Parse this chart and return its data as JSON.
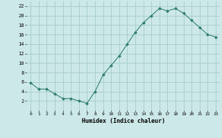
{
  "x": [
    0,
    1,
    2,
    3,
    4,
    5,
    6,
    7,
    8,
    9,
    10,
    11,
    12,
    13,
    14,
    15,
    16,
    17,
    18,
    19,
    20,
    21,
    22,
    23
  ],
  "y": [
    5.8,
    4.5,
    4.5,
    3.5,
    2.5,
    2.5,
    2.0,
    1.5,
    4.0,
    7.5,
    9.5,
    11.5,
    14.0,
    16.5,
    18.5,
    20.0,
    21.5,
    21.0,
    21.5,
    20.5,
    19.0,
    17.5,
    16.0,
    15.5
  ],
  "line_color": "#2e7d6e",
  "marker": "D",
  "marker_size": 2,
  "bg_color": "#cce8e8",
  "grid_color": "#aacece",
  "xlabel": "Humidex (Indice chaleur)",
  "xlim": [
    -0.5,
    23.5
  ],
  "ylim": [
    0,
    23
  ],
  "yticks": [
    2,
    4,
    6,
    8,
    10,
    12,
    14,
    16,
    18,
    20,
    22
  ],
  "xticks": [
    0,
    1,
    2,
    3,
    4,
    5,
    6,
    7,
    8,
    9,
    10,
    11,
    12,
    13,
    14,
    15,
    16,
    17,
    18,
    19,
    20,
    21,
    22,
    23
  ]
}
